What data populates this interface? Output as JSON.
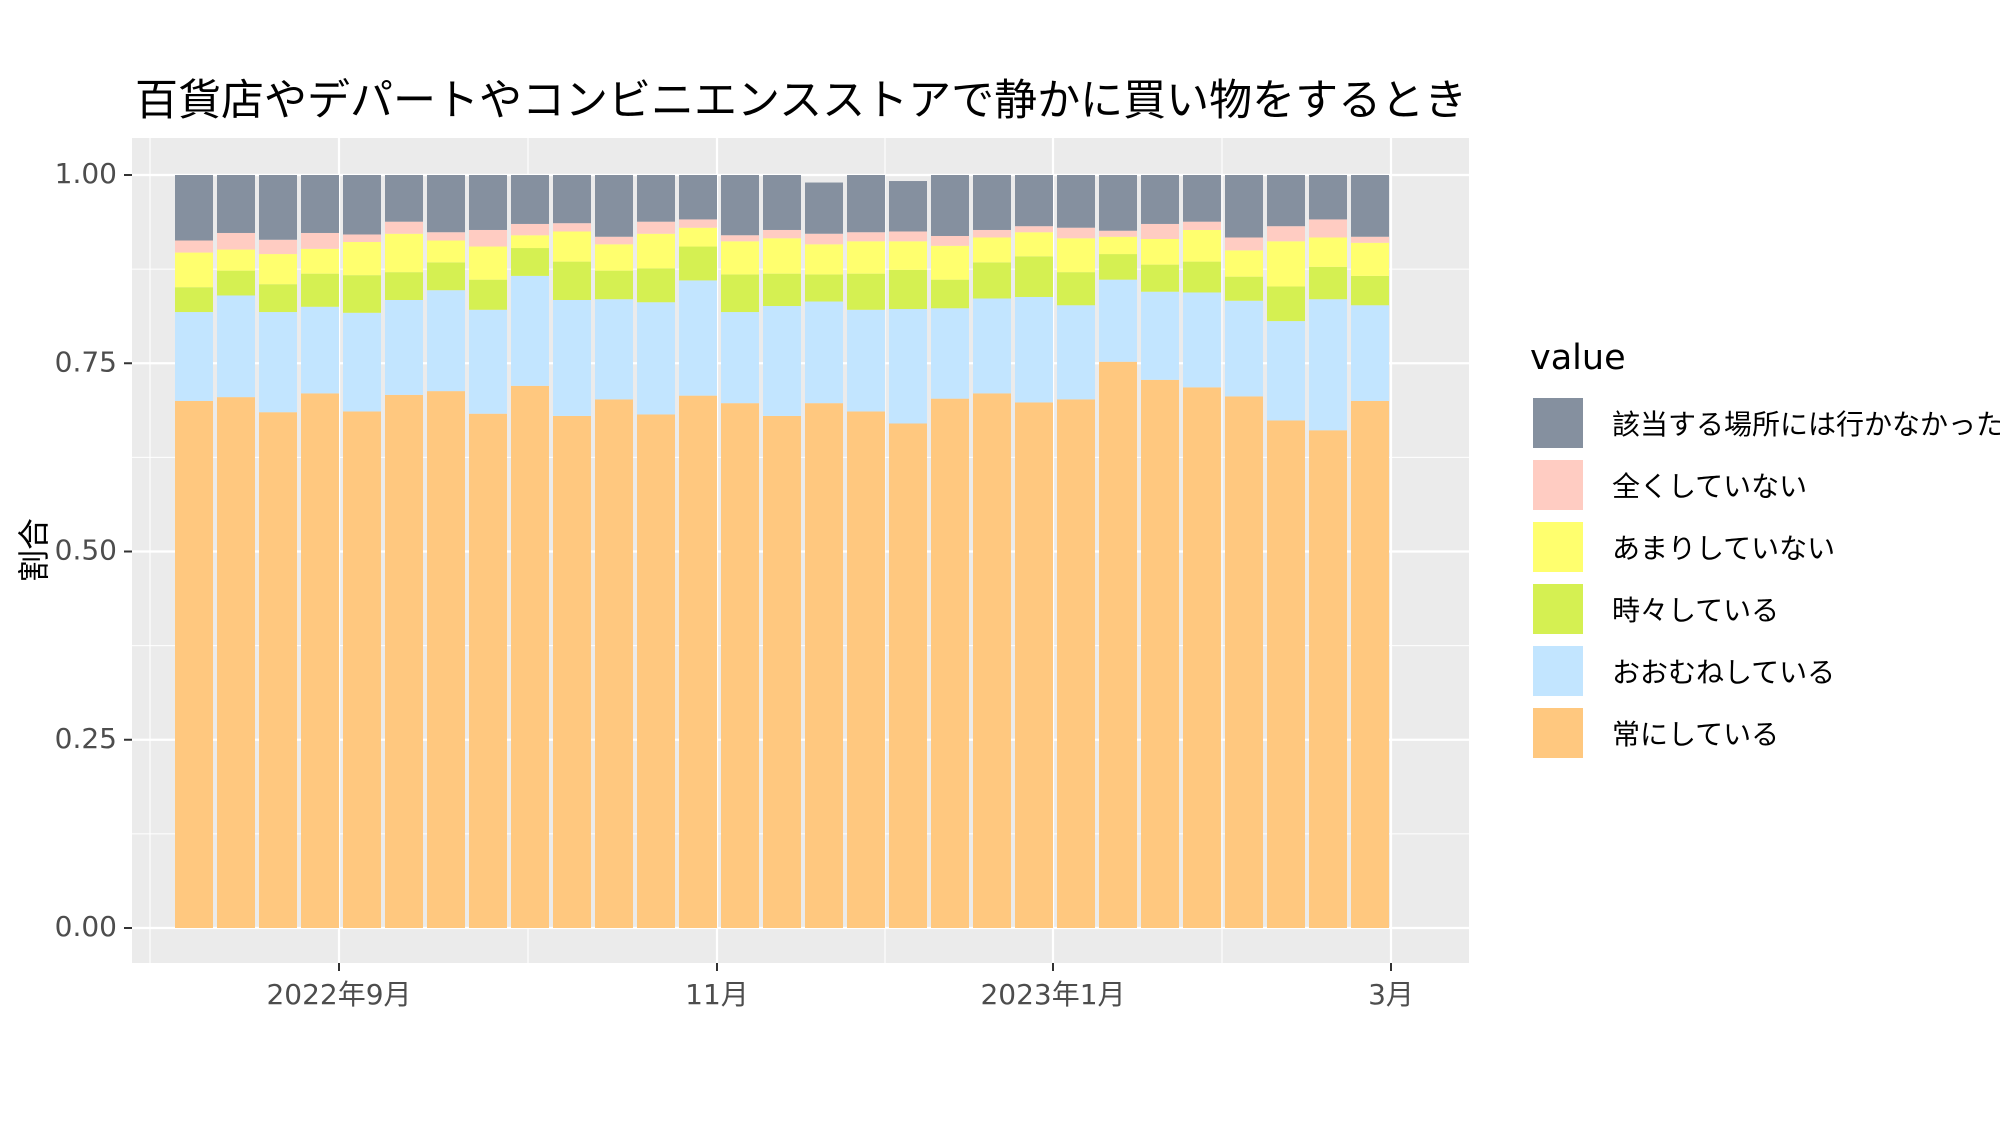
{
  "chart_data": {
    "type": "bar",
    "stacked": true,
    "title": "百貨店やデパートやコンビニエンスストアで静かに買い物をするとき",
    "xlabel": "",
    "ylabel": "割合",
    "ylim": [
      0,
      1
    ],
    "yticks": [
      "0.00",
      "0.25",
      "0.50",
      "0.75",
      "1.00"
    ],
    "xticks": [
      "2022年9月",
      "11月",
      "2023年1月",
      "3月"
    ],
    "grid": true,
    "legend_title": "value",
    "legend_position": "right",
    "series": [
      {
        "name": "常にしている",
        "color": "#FFC87F",
        "values": [
          0.7,
          0.705,
          0.685,
          0.71,
          0.686,
          0.708,
          0.713,
          0.683,
          0.72,
          0.68,
          0.702,
          0.682,
          0.707,
          0.697,
          0.68,
          0.697,
          0.686,
          0.67,
          0.703,
          0.71,
          0.698,
          0.702,
          0.752,
          0.728,
          0.718,
          0.706,
          0.674,
          0.661,
          0.7
        ]
      },
      {
        "name": "おおむねしている",
        "color": "#C2E5FF",
        "values": [
          0.118,
          0.135,
          0.133,
          0.115,
          0.131,
          0.126,
          0.134,
          0.138,
          0.146,
          0.154,
          0.133,
          0.149,
          0.153,
          0.121,
          0.146,
          0.135,
          0.135,
          0.152,
          0.12,
          0.126,
          0.14,
          0.125,
          0.109,
          0.117,
          0.126,
          0.127,
          0.132,
          0.174,
          0.127
        ]
      },
      {
        "name": "時々している",
        "color": "#D5F052",
        "values": [
          0.033,
          0.033,
          0.037,
          0.044,
          0.05,
          0.037,
          0.037,
          0.04,
          0.037,
          0.051,
          0.038,
          0.045,
          0.045,
          0.05,
          0.043,
          0.036,
          0.048,
          0.052,
          0.038,
          0.048,
          0.054,
          0.044,
          0.034,
          0.036,
          0.041,
          0.032,
          0.046,
          0.043,
          0.039
        ]
      },
      {
        "name": "あまりしていない",
        "color": "#FFFF6E",
        "values": [
          0.046,
          0.028,
          0.04,
          0.033,
          0.044,
          0.051,
          0.029,
          0.044,
          0.017,
          0.04,
          0.035,
          0.046,
          0.025,
          0.044,
          0.047,
          0.04,
          0.043,
          0.038,
          0.045,
          0.033,
          0.032,
          0.045,
          0.023,
          0.034,
          0.042,
          0.035,
          0.06,
          0.039,
          0.044
        ]
      },
      {
        "name": "全くしていない",
        "color": "#FFCCC2",
        "values": [
          0.016,
          0.022,
          0.019,
          0.021,
          0.01,
          0.016,
          0.011,
          0.022,
          0.015,
          0.011,
          0.01,
          0.016,
          0.011,
          0.008,
          0.011,
          0.014,
          0.012,
          0.013,
          0.013,
          0.01,
          0.008,
          0.014,
          0.008,
          0.02,
          0.011,
          0.017,
          0.02,
          0.024,
          0.008
        ]
      },
      {
        "name": "該当する場所には行かなかった",
        "color": "#85909F",
        "values": [
          0.087,
          0.077,
          0.086,
          0.077,
          0.079,
          0.062,
          0.076,
          0.073,
          0.065,
          0.064,
          0.082,
          0.062,
          0.059,
          0.08,
          0.073,
          0.068,
          0.076,
          0.067,
          0.081,
          0.073,
          0.068,
          0.07,
          0.074,
          0.065,
          0.062,
          0.083,
          0.068,
          0.059,
          0.082
        ]
      }
    ]
  }
}
